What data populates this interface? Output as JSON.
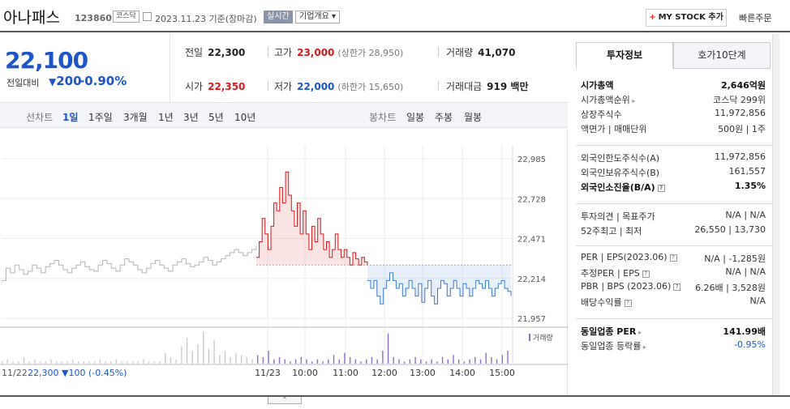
{
  "header": {
    "name": "아나패스",
    "code": "123860",
    "market": "코스닥",
    "date": "2023.11.23 기준(장마감)",
    "realtime": "실시간",
    "corp_overview": "기업개요",
    "mystock": "MY STOCK 추가",
    "quick_order": "빠른주문"
  },
  "price": {
    "current": "22,100",
    "change_label": "전일대비",
    "change": "200",
    "change_pct": "-0.90%"
  },
  "stats": {
    "prev_label": "전일",
    "prev": "22,300",
    "high_label": "고가",
    "high": "23,000",
    "upper_limit": "(상한가 28,950)",
    "volume_label": "거래량",
    "volume": "41,070",
    "open_label": "시가",
    "open": "22,350",
    "low_label": "저가",
    "low": "22,000",
    "lower_limit": "(하한가 15,650)",
    "amount_label": "거래대금",
    "amount": "919 백만"
  },
  "chart_tabs": {
    "line_label": "선차트",
    "periods": [
      "1일",
      "1주일",
      "3개월",
      "1년",
      "3년",
      "5년",
      "10년"
    ],
    "candle_label": "봉차트",
    "candles": [
      "일봉",
      "주봉",
      "월봉"
    ]
  },
  "chart_data": {
    "type": "line",
    "title": "",
    "prev_close": 22300,
    "ylim": [
      21957,
      22985
    ],
    "yticks": [
      "22,985",
      "22,728",
      "22,471",
      "22,214",
      "21,957"
    ],
    "xticks": [
      "11/23",
      "10:00",
      "11:00",
      "12:00",
      "13:00",
      "14:00",
      "15:00"
    ],
    "volume_legend": "거래량",
    "prev_day_label": "11/22",
    "prev_day_close": "22,300",
    "prev_day_change": "100",
    "prev_day_pct": "(-0.45%)",
    "series": [
      {
        "values": [
          22200,
          22280,
          22250,
          22300,
          22270,
          22240,
          22260,
          22300,
          22280,
          22250,
          22290,
          22310,
          22330,
          22300,
          22270,
          22250,
          22280,
          22300,
          22320,
          22290,
          22270,
          22260,
          22300,
          22330,
          22310,
          22280,
          22260,
          22300,
          22340,
          22320,
          22300,
          22270,
          22250,
          22280,
          22310,
          22330,
          22300,
          22280,
          22260,
          22300,
          22320,
          22340,
          22310,
          22290,
          22300,
          22320,
          22350,
          22330,
          22300,
          22320,
          22340,
          22360,
          22380,
          22400,
          22380,
          22360,
          22380,
          22400,
          22420
        ]
      },
      {
        "values": [
          22350,
          22450,
          22600,
          22500,
          22400,
          22550,
          22700,
          22650,
          22800,
          22700,
          22900,
          22750,
          22650,
          22550,
          22700,
          22500,
          22650,
          22500,
          22400,
          22550,
          22450,
          22600,
          22500,
          22400,
          22450,
          22350,
          22400,
          22500,
          22400,
          22350,
          22400,
          22350,
          22300,
          22380,
          22340,
          22300,
          22350,
          22320,
          22300
        ]
      },
      {
        "values": [
          22200,
          22150,
          22200,
          22100,
          22050,
          22150,
          22200,
          22250,
          22200,
          22150,
          22180,
          22100,
          22150,
          22200,
          22150,
          22100,
          22180,
          22060,
          22150,
          22200,
          22100,
          22050,
          22150,
          22200,
          22180,
          22100,
          22150,
          22200,
          22150,
          22100,
          22180,
          22150,
          22100,
          22150,
          22200,
          22180,
          22150,
          22200,
          22150,
          22100,
          22150,
          22180,
          22200,
          22150,
          22130,
          22100
        ]
      }
    ],
    "volume": [
      1,
      2,
      1,
      1,
      3,
      1,
      2,
      1,
      1,
      2,
      1,
      1,
      1,
      2,
      1,
      1,
      1,
      1,
      2,
      1,
      1,
      2,
      1,
      1,
      1,
      1,
      2,
      1,
      1,
      1,
      5,
      3,
      2,
      8,
      12,
      6,
      9,
      15,
      7,
      11,
      4,
      6,
      3,
      5,
      4,
      3,
      2,
      4,
      3,
      6,
      2,
      3,
      2,
      1,
      2,
      3,
      2,
      1,
      2,
      1,
      2,
      4,
      2,
      5,
      3,
      2,
      1,
      2,
      3,
      2,
      6,
      14,
      3,
      2,
      1,
      2,
      3,
      2,
      1,
      2,
      1,
      3,
      2,
      4,
      2,
      1,
      2,
      3,
      2,
      5,
      3,
      2,
      4,
      6
    ]
  },
  "side": {
    "tabs": [
      "투자정보",
      "호가10단계"
    ],
    "rows": [
      {
        "k": "시가총액",
        "v": "2,646억원"
      },
      {
        "k": "시가총액순위",
        "v": "코스닥 299위"
      },
      {
        "k": "상장주식수",
        "v": "11,972,856"
      },
      {
        "k": "액면가 | 매매단위",
        "v": "500원 | 1주"
      },
      {
        "k": "외국인한도주식수(A)",
        "v": "11,972,856"
      },
      {
        "k": "외국인보유주식수(B)",
        "v": "161,557"
      },
      {
        "k": "외국인소진율(B/A)",
        "v": "1.35%"
      },
      {
        "k": "투자의견 | 목표주가",
        "v": "N/A | N/A"
      },
      {
        "k": "52주최고 | 최저",
        "v": "26,550 | 13,730"
      },
      {
        "k": "PER | EPS(2023.06)",
        "v": "N/A | -1,285원"
      },
      {
        "k": "추정PER | EPS",
        "v": "N/A | N/A"
      },
      {
        "k": "PBR | BPS (2023.06)",
        "v": "6.26배 | 3,528원"
      },
      {
        "k": "배당수익률",
        "v": "N/A"
      },
      {
        "k": "동일업종 PER",
        "v": "141.99배"
      },
      {
        "k": "동일업종 등락률",
        "v": "-0.95%"
      }
    ]
  },
  "colors": {
    "up": "#d7181c",
    "down": "#1a56c8",
    "grey": "#b5b5b5"
  }
}
